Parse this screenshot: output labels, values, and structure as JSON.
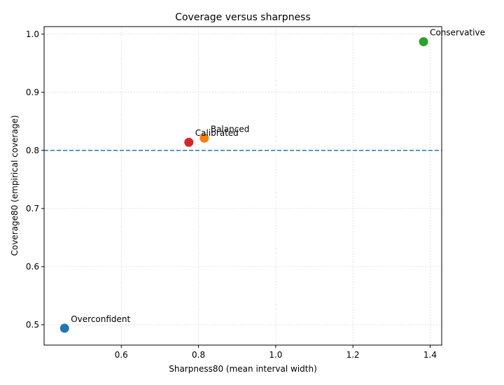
{
  "chart_data": {
    "type": "scatter",
    "title": "Coverage versus sharpness",
    "xlabel": "Sharpness80 (mean interval width)",
    "ylabel": "Coverage80 (empirical coverage)",
    "xlim": [
      0.4,
      1.43
    ],
    "ylim": [
      0.465,
      1.013
    ],
    "x_ticks": [
      0.6,
      0.8,
      1.0,
      1.2,
      1.4
    ],
    "y_ticks": [
      0.5,
      0.6,
      0.7,
      0.8,
      0.9,
      1.0
    ],
    "x_tick_labels": [
      "0.6",
      "0.8",
      "1.0",
      "1.2",
      "1.4"
    ],
    "y_tick_labels": [
      "0.5",
      "0.6",
      "0.7",
      "0.8",
      "0.9",
      "1.0"
    ],
    "grid": true,
    "reference_line": {
      "y": 0.8,
      "color": "#1f77b4",
      "style": "dashed"
    },
    "points": [
      {
        "label": "Overconfident",
        "x": 0.453,
        "y": 0.494,
        "color": "#1f77b4"
      },
      {
        "label": "Balanced",
        "x": 0.815,
        "y": 0.821,
        "color": "#ff7f0e"
      },
      {
        "label": "Conservative",
        "x": 1.383,
        "y": 0.987,
        "color": "#2ca02c"
      },
      {
        "label": "Calibrated",
        "x": 0.775,
        "y": 0.814,
        "color": "#d62728"
      }
    ]
  }
}
